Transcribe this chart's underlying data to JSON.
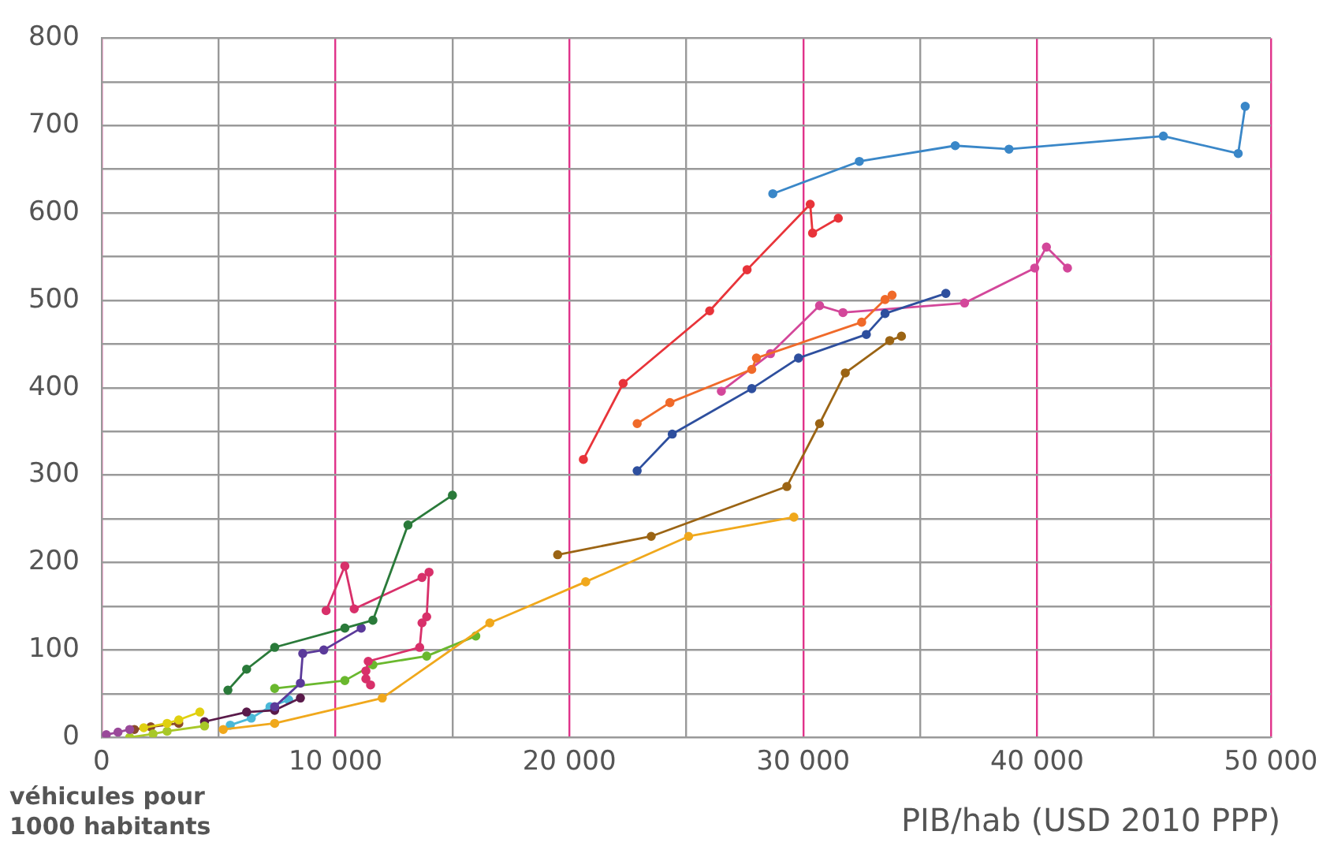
{
  "chart_data": {
    "type": "line",
    "xlabel": "PIB/hab (USD 2010 PPP)",
    "ylabel": "véhicules pour 1000 habitants",
    "xlim": [
      0,
      50000
    ],
    "ylim": [
      0,
      800
    ],
    "xticks": [
      0,
      {
        "value": 5000,
        "label": null
      },
      {
        "value": 10000,
        "label": "10 000"
      },
      {
        "value": 15000,
        "label": null
      },
      {
        "value": 20000,
        "label": "20 000"
      },
      {
        "value": 25000,
        "label": null
      },
      {
        "value": 30000,
        "label": "30 000"
      },
      {
        "value": 35000,
        "label": null
      },
      {
        "value": 40000,
        "label": "40 000"
      },
      {
        "value": 45000,
        "label": null
      },
      {
        "value": 50000,
        "label": "50 000"
      }
    ],
    "yticks": [
      0,
      {
        "value": 50,
        "label": null
      },
      100,
      {
        "value": 150,
        "label": null
      },
      200,
      {
        "value": 250,
        "label": null
      },
      300,
      {
        "value": 350,
        "label": null
      },
      400,
      {
        "value": 450,
        "label": null
      },
      500,
      {
        "value": 550,
        "label": null
      },
      600,
      {
        "value": 650,
        "label": null
      },
      700,
      {
        "value": 750,
        "label": null
      },
      800
    ],
    "grid": true,
    "legend": false,
    "marker": "circle",
    "line_style": "solid",
    "series": [
      {
        "color": "#9a4a9a",
        "x": [
          200,
          700,
          1200
        ],
        "values": [
          3,
          6,
          9
        ]
      },
      {
        "color": "#3a87c8",
        "x": [
          28700,
          32400,
          36500,
          38800,
          45400,
          48600,
          48900
        ],
        "values": [
          622,
          659,
          677,
          673,
          688,
          668,
          722
        ]
      },
      {
        "color": "#e8343a",
        "x": [
          20600,
          22300,
          26000,
          27600,
          30300,
          30400,
          31500
        ],
        "values": [
          318,
          405,
          488,
          535,
          610,
          577,
          594
        ]
      },
      {
        "color": "#f06a2a",
        "x": [
          22900,
          24300,
          27800,
          28000,
          32500,
          33500,
          33800
        ],
        "values": [
          359,
          383,
          421,
          434,
          475,
          501,
          506
        ]
      },
      {
        "color": "#2e4f9e",
        "x": [
          22900,
          24400,
          27800,
          29800,
          32700,
          33500,
          36100
        ],
        "values": [
          305,
          347,
          399,
          434,
          461,
          485,
          508
        ]
      },
      {
        "color": "#d3479a",
        "x": [
          26500,
          28600,
          30700,
          31700,
          36900,
          39900,
          40400,
          41300
        ],
        "values": [
          396,
          439,
          494,
          486,
          497,
          537,
          561,
          537
        ]
      },
      {
        "color": "#9b6414",
        "x": [
          19500,
          23500,
          29300,
          30700,
          31800,
          33700,
          34200
        ],
        "values": [
          209,
          230,
          287,
          359,
          417,
          454,
          459
        ]
      },
      {
        "color": "#f0a81c",
        "x": [
          5200,
          7400,
          12000,
          16600,
          20700,
          25100,
          29600
        ],
        "values": [
          9,
          16,
          45,
          131,
          178,
          230,
          252
        ]
      },
      {
        "color": "#2a7a3a",
        "x": [
          5400,
          6200,
          7400,
          10400,
          11600,
          13100,
          15000
        ],
        "values": [
          54,
          78,
          103,
          125,
          134,
          243,
          277
        ]
      },
      {
        "color": "#d8306a",
        "x": [
          9600,
          10400,
          10800,
          13700,
          14000,
          13900,
          13700,
          13600,
          11400,
          11300,
          11300,
          11500
        ],
        "values": [
          145,
          196,
          147,
          183,
          189,
          138,
          131,
          103,
          87,
          76,
          67,
          60
        ]
      },
      {
        "color": "#5b3a9a",
        "x": [
          7400,
          8500,
          8600,
          9500,
          11100
        ],
        "values": [
          35,
          62,
          96,
          100,
          125
        ]
      },
      {
        "color": "#6ab82e",
        "x": [
          7400,
          10400,
          11600,
          13900,
          16000
        ],
        "values": [
          56,
          65,
          83,
          93,
          116
        ]
      },
      {
        "color": "#e0d010",
        "x": [
          1800,
          2800,
          3300,
          4200
        ],
        "values": [
          11,
          16,
          20,
          29
        ]
      },
      {
        "color": "#a8c828",
        "x": [
          1200,
          2200,
          2800,
          4400
        ],
        "values": [
          0,
          4,
          7,
          13
        ]
      },
      {
        "color": "#8a4a2a",
        "x": [
          1400,
          2100,
          3300
        ],
        "values": [
          9,
          12,
          16
        ]
      },
      {
        "color": "#5a1a4a",
        "x": [
          4400,
          6200,
          7400,
          8500
        ],
        "values": [
          18,
          29,
          31,
          45
        ]
      },
      {
        "color": "#4ab8d8",
        "x": [
          5500,
          6400,
          7200,
          8000
        ],
        "values": [
          14,
          22,
          35,
          43
        ]
      }
    ]
  }
}
